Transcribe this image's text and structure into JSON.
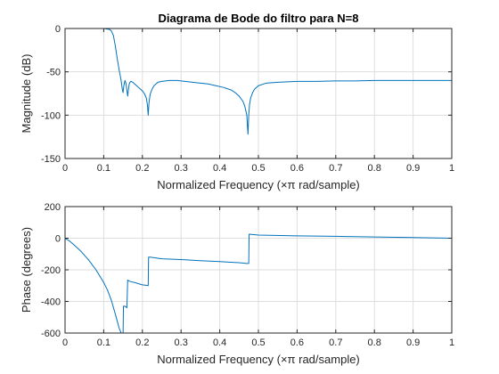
{
  "chart_data": [
    {
      "type": "line",
      "title": "Diagrama de Bode do filtro para N=8",
      "xlabel": "Normalized Frequency  (×π rad/sample)",
      "ylabel": "Magnitude (dB)",
      "xlim": [
        0,
        1
      ],
      "ylim": [
        -150,
        0
      ],
      "xticks": [
        "0",
        "0.1",
        "0.2",
        "0.3",
        "0.4",
        "0.5",
        "0.6",
        "0.7",
        "0.8",
        "0.9",
        "1"
      ],
      "yticks": [
        "-150",
        "-100",
        "-50",
        "0"
      ],
      "grid": true,
      "color": "#0072bd",
      "x": [
        0,
        0.02,
        0.05,
        0.08,
        0.1,
        0.115,
        0.12,
        0.125,
        0.13,
        0.135,
        0.14,
        0.145,
        0.148,
        0.15,
        0.152,
        0.155,
        0.158,
        0.16,
        0.162,
        0.164,
        0.166,
        0.168,
        0.17,
        0.175,
        0.18,
        0.185,
        0.19,
        0.195,
        0.2,
        0.205,
        0.21,
        0.213,
        0.215,
        0.217,
        0.22,
        0.225,
        0.23,
        0.24,
        0.25,
        0.27,
        0.29,
        0.31,
        0.33,
        0.35,
        0.37,
        0.39,
        0.41,
        0.43,
        0.44,
        0.45,
        0.46,
        0.465,
        0.47,
        0.473,
        0.475,
        0.477,
        0.48,
        0.485,
        0.49,
        0.5,
        0.52,
        0.55,
        0.6,
        0.65,
        0.7,
        0.75,
        0.8,
        0.85,
        0.9,
        0.95,
        1.0
      ],
      "values": [
        0,
        0,
        0,
        0,
        0,
        -1,
        -3,
        -8,
        -20,
        -35,
        -48,
        -60,
        -70,
        -74,
        -66,
        -60,
        -64,
        -72,
        -78,
        -70,
        -64,
        -62,
        -61,
        -62,
        -64,
        -66,
        -68,
        -70,
        -72,
        -75,
        -80,
        -88,
        -100,
        -86,
        -76,
        -70,
        -66,
        -62,
        -61,
        -60,
        -60,
        -61,
        -62,
        -63,
        -64,
        -66,
        -68,
        -71,
        -74,
        -78,
        -84,
        -90,
        -100,
        -122,
        -100,
        -88,
        -80,
        -74,
        -70,
        -66,
        -63,
        -62,
        -61,
        -61,
        -60.5,
        -60.5,
        -60,
        -60,
        -60,
        -60,
        -60
      ]
    },
    {
      "type": "line",
      "title": "",
      "xlabel": "Normalized Frequency  (×π rad/sample)",
      "ylabel": "Phase (degrees)",
      "xlim": [
        0,
        1
      ],
      "ylim": [
        -600,
        200
      ],
      "xticks": [
        "0",
        "0.1",
        "0.2",
        "0.3",
        "0.4",
        "0.5",
        "0.6",
        "0.7",
        "0.8",
        "0.9",
        "1"
      ],
      "yticks": [
        "-600",
        "-400",
        "-200",
        "0",
        "200"
      ],
      "grid": true,
      "color": "#0072bd",
      "x": [
        0,
        0.01,
        0.02,
        0.04,
        0.06,
        0.08,
        0.1,
        0.11,
        0.12,
        0.13,
        0.14,
        0.145,
        0.15,
        0.151,
        0.155,
        0.16,
        0.16,
        0.162,
        0.165,
        0.17,
        0.18,
        0.19,
        0.2,
        0.21,
        0.215,
        0.216,
        0.22,
        0.25,
        0.3,
        0.35,
        0.4,
        0.45,
        0.47,
        0.475,
        0.476,
        0.5,
        0.6,
        0.7,
        0.8,
        0.9,
        1.0
      ],
      "values": [
        0,
        -15,
        -35,
        -80,
        -135,
        -200,
        -280,
        -330,
        -395,
        -480,
        -570,
        -600,
        -620,
        -430,
        -430,
        -440,
        -430,
        -265,
        -270,
        -275,
        -280,
        -288,
        -295,
        -298,
        -300,
        -120,
        -120,
        -130,
        -135,
        -142,
        -148,
        -155,
        -160,
        -160,
        25,
        20,
        15,
        12,
        8,
        4,
        0
      ]
    }
  ]
}
